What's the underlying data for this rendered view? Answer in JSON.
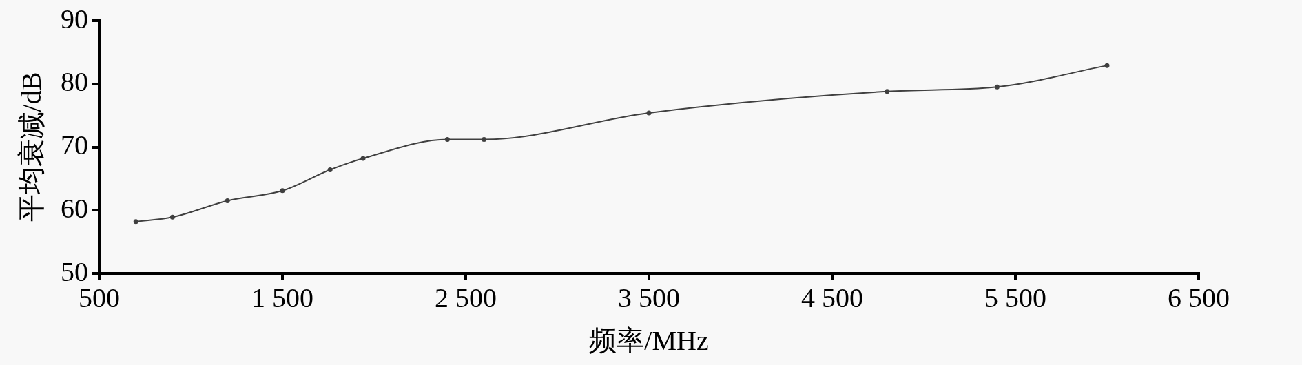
{
  "chart_data": {
    "type": "line",
    "xlabel": "频率/MHz",
    "ylabel": "平均衰减/dB",
    "x": [
      700,
      900,
      1200,
      1500,
      1760,
      1940,
      2400,
      2600,
      3500,
      4800,
      5400,
      6000
    ],
    "series": [
      {
        "color": "#404040",
        "values": [
          58.2,
          58.9,
          61.5,
          63.1,
          66.4,
          68.2,
          71.2,
          71.2,
          75.4,
          78.8,
          79.5,
          82.9
        ]
      }
    ],
    "xlim": [
      500,
      6500
    ],
    "xticks": [
      {
        "value": 500,
        "label": "500"
      },
      {
        "value": 1500,
        "label": "1 500"
      },
      {
        "value": 2500,
        "label": "2 500"
      },
      {
        "value": 3500,
        "label": "3 500"
      },
      {
        "value": 4500,
        "label": "4 500"
      },
      {
        "value": 5500,
        "label": "5 500"
      },
      {
        "value": 6500,
        "label": "6 500"
      }
    ],
    "ylim": [
      50,
      90
    ],
    "yticks": [
      50,
      60,
      70,
      80,
      90
    ],
    "grid": false,
    "legend": false,
    "marker": "circle",
    "line_style": "solid"
  }
}
